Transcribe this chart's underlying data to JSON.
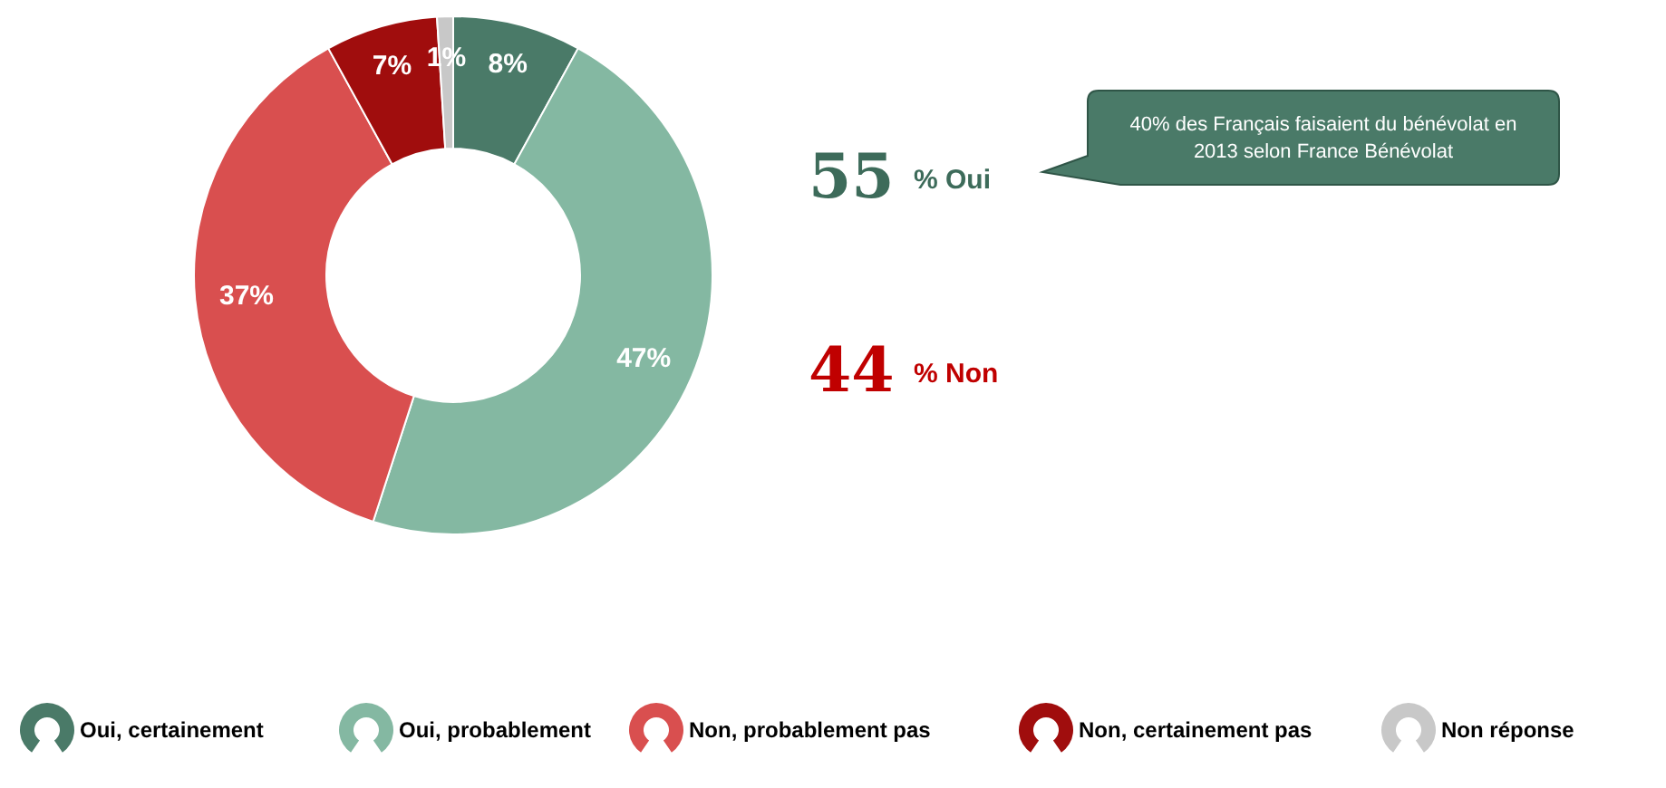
{
  "chart_data": {
    "type": "donut",
    "categories": [
      "Oui, certainement",
      "Oui, probablement",
      "Non, probablement pas",
      "Non, certainement pas",
      "Non réponse"
    ],
    "values": [
      8,
      47,
      37,
      7,
      1
    ],
    "colors": [
      "#4a7a68",
      "#84b8a2",
      "#d94f4f",
      "#a00d0d",
      "#c8c8c8"
    ],
    "value_labels": [
      "8%",
      "47%",
      "37%",
      "7%",
      "1%"
    ],
    "legend": "bottom",
    "annotations": [
      "55",
      "% Oui",
      "44",
      "% Non",
      "40% des Français faisaient du bénévolat en 2013 selon France Bénévolat"
    ]
  }
}
